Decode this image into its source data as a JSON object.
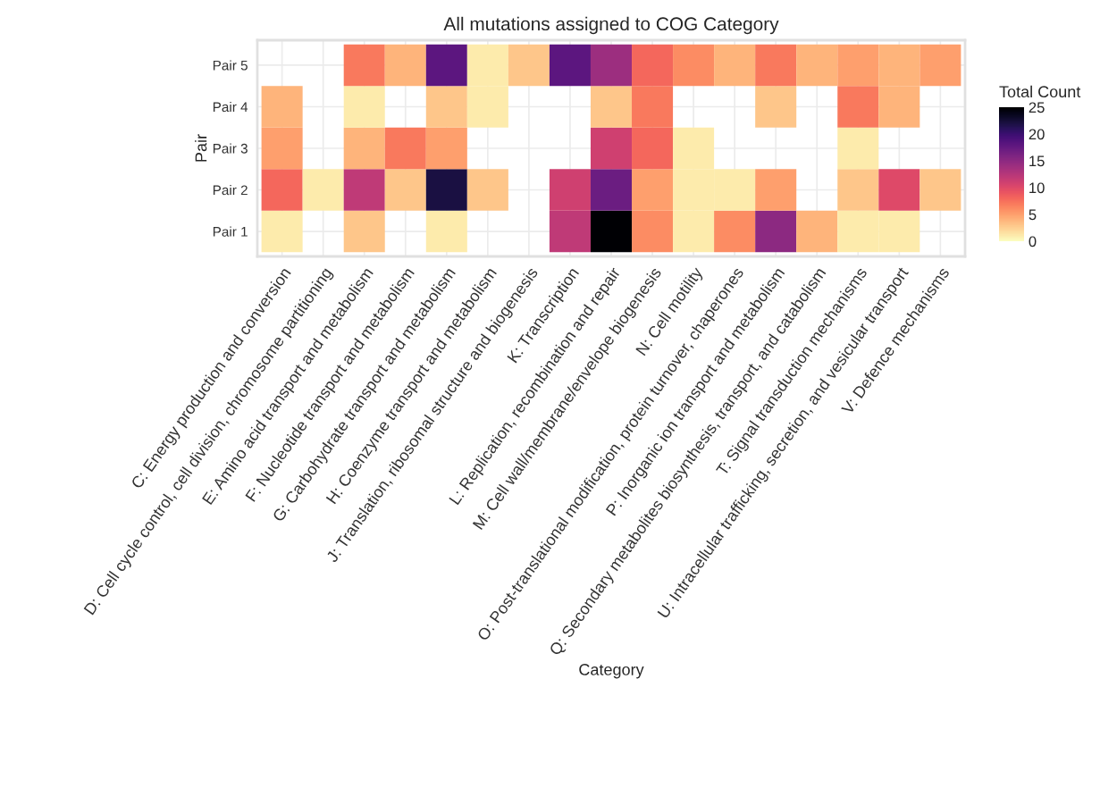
{
  "chart_data": {
    "type": "heatmap",
    "title": "All mutations assigned to COG Category",
    "xlabel": "Category",
    "ylabel": "Pair",
    "legend_title": "Total Count",
    "categories": [
      "C: Energy production and conversion",
      "D: Cell cycle control, cell division, chromosome partitioning",
      "E: Amino acid transport and metabolism",
      "F: Nucleotide transport and metabolism",
      "G: Carbohydrate transport and metabolism",
      "H: Coenzyme transport and metabolism",
      "J: Translation, ribosomal structure and biogenesis",
      "K: Transcription",
      "L: Replication, recombination and repair",
      "M: Cell wall/membrane/envelope biogenesis",
      "N: Cell motility",
      "O: Post-translational modification, protein turnover, chaperones",
      "P: Inorganic ion transport and metabolism",
      "Q: Secondary metabolites biosynthesis, transport, and catabolism",
      "T: Signal transduction mechanisms",
      "U: Intracellular trafficking, secretion, and vesicular transport",
      "V: Defence mechanisms"
    ],
    "y_categories": [
      "Pair 5",
      "Pair 4",
      "Pair 3",
      "Pair 2",
      "Pair 1"
    ],
    "cells": [
      [
        null,
        null,
        7,
        4,
        18,
        1,
        3,
        18,
        14,
        8,
        6,
        4,
        7,
        4,
        5,
        4,
        5
      ],
      [
        4,
        null,
        1,
        null,
        3,
        1,
        null,
        null,
        3,
        7,
        null,
        null,
        3,
        null,
        7,
        4,
        null
      ],
      [
        5,
        null,
        4,
        7,
        5,
        null,
        null,
        null,
        11,
        8,
        1,
        null,
        null,
        null,
        1,
        null,
        null
      ],
      [
        8,
        1,
        12,
        3,
        22,
        3,
        null,
        11,
        17,
        5,
        1,
        1,
        5,
        null,
        3,
        10,
        3
      ],
      [
        1,
        null,
        3,
        null,
        1,
        null,
        null,
        12,
        25,
        6,
        1,
        6,
        15,
        4,
        1,
        1,
        null
      ]
    ],
    "clim": [
      0,
      25
    ],
    "cticks": [
      0,
      5,
      10,
      15,
      20,
      25
    ],
    "grid": true
  }
}
